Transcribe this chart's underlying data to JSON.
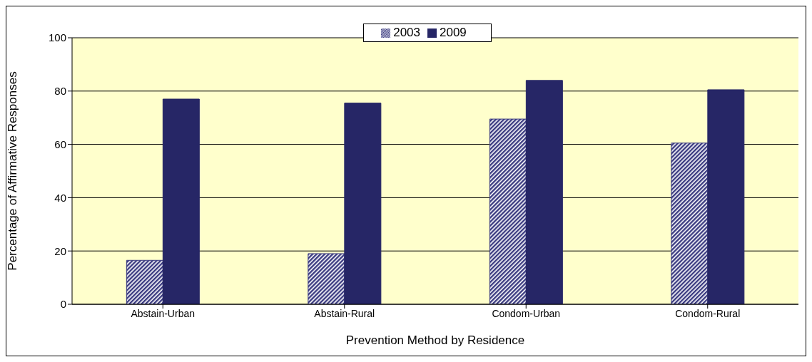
{
  "chart_data": {
    "type": "bar",
    "xlabel": "Prevention Method by Residence",
    "ylabel": "Percentage of Affirmative Responses",
    "categories": [
      "Abstain-Urban",
      "Abstain-Rural",
      "Condom-Urban",
      "Condom-Rural"
    ],
    "series": [
      {
        "name": "2003",
        "color": "#3a3a80",
        "values": [
          16.5,
          19,
          69.5,
          60.5
        ]
      },
      {
        "name": "2009",
        "color": "#262666",
        "values": [
          77,
          75.5,
          84,
          80.5
        ]
      }
    ],
    "ylim": [
      0,
      100
    ],
    "yticks": [
      0,
      20,
      40,
      60,
      80,
      100
    ],
    "grid": "y",
    "legend": "top"
  }
}
